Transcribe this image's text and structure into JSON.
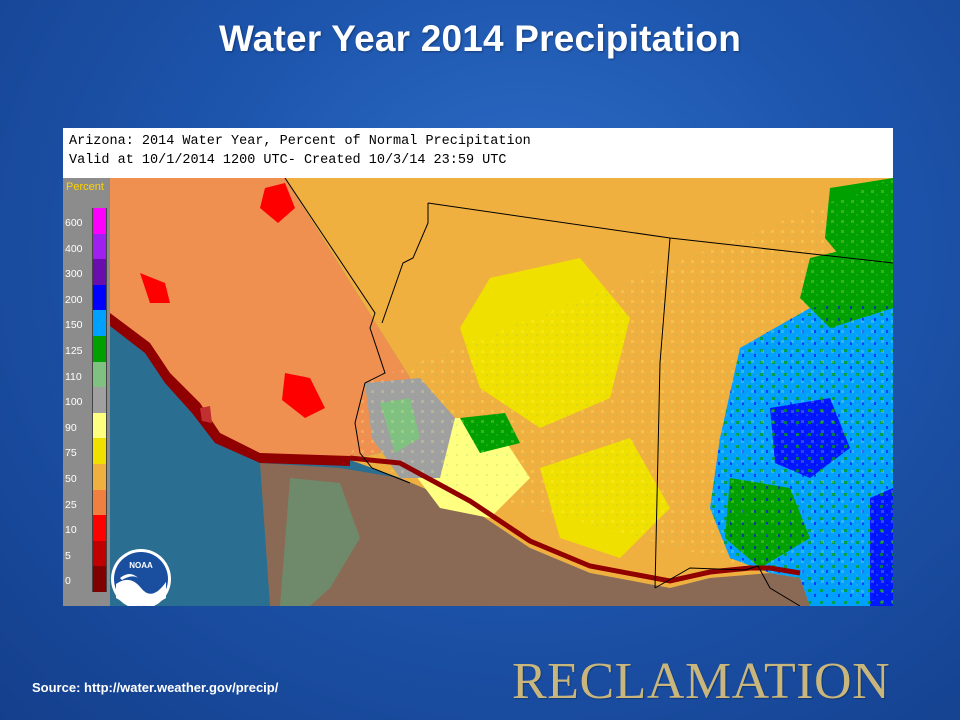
{
  "slide": {
    "title": "Water Year 2014 Precipitation",
    "source": "Source: http://water.weather.gov/precip/",
    "logo_text": "RECLAMATION"
  },
  "map": {
    "header_line1": "Arizona: 2014 Water Year, Percent of Normal Precipitation",
    "header_line2": "Valid at 10/1/2014 1200 UTC- Created 10/3/14 23:59 UTC",
    "noaa_label": "NOAA",
    "legend": {
      "title": "Percent",
      "labels": [
        "600",
        "400",
        "300",
        "200",
        "150",
        "125",
        "110",
        "100",
        "90",
        "75",
        "50",
        "25",
        "10",
        "5",
        "0"
      ],
      "colors": [
        "#ff00ff",
        "#a020f0",
        "#6a0dad",
        "#0000ff",
        "#00a0ff",
        "#00a000",
        "#80c080",
        "#a0a0a0",
        "#ffff80",
        "#f0e000",
        "#f0b040",
        "#f08040",
        "#ff0000",
        "#c00000",
        "#800000"
      ]
    }
  },
  "colors": {
    "background": "#1d55ad",
    "title": "#ffffff",
    "reclamation": "#c9b67d"
  }
}
